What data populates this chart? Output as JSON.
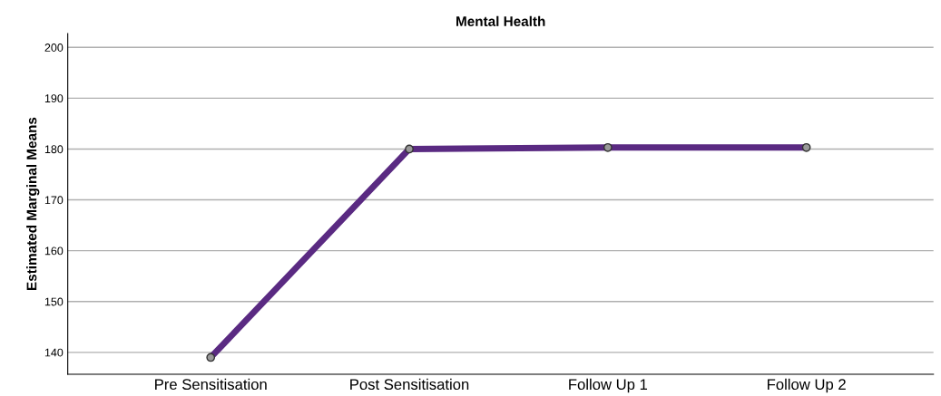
{
  "chart_data": {
    "type": "line",
    "title": "Mental Health",
    "ylabel": "Estimated Marginal Means",
    "categories": [
      "Pre Sensitisation",
      "Post Sensitisation",
      "Follow Up 1",
      "Follow Up 2"
    ],
    "series": [
      {
        "color": "#5a2a82",
        "values": [
          139,
          180,
          180.3,
          180.3
        ]
      }
    ],
    "ylim": [
      135.7,
      202.7
    ],
    "yticks": [
      140,
      150,
      160,
      170,
      180,
      190,
      200
    ],
    "grid": "y",
    "marker": "circle",
    "line_style": "solid"
  }
}
